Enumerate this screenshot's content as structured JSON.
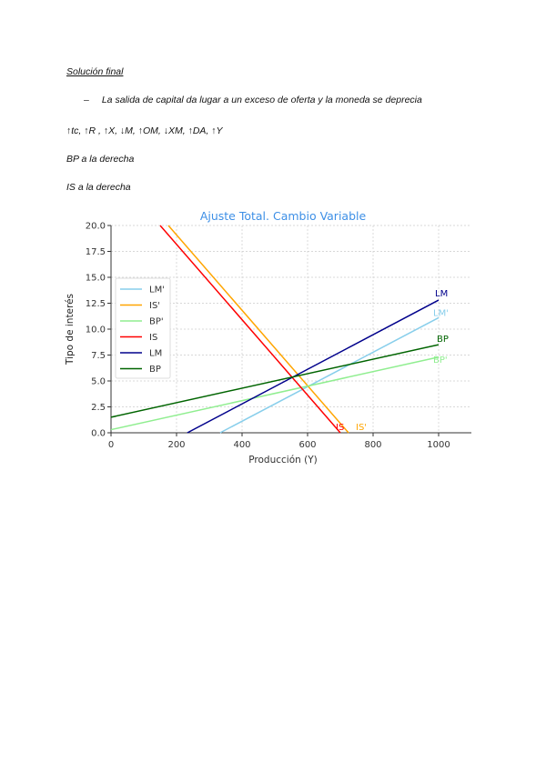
{
  "document": {
    "heading": "Solución final",
    "bullet_marker": "–",
    "bullet_text": "La salida de capital da lugar a un exceso de oferta y la moneda se deprecia",
    "line2": "↑tc, ↑R , ↑X, ↓M, ↑OM, ↓XM, ↑DA, ↑Y",
    "line3": "BP a la derecha",
    "line4": "IS a la derecha"
  },
  "chart_data": {
    "type": "line",
    "title": "Ajuste Total. Cambio Variable",
    "title_color": "#3d8fe6",
    "xlabel": "Producción (Y)",
    "ylabel": "Tipo de interés",
    "xlim": [
      0,
      1050
    ],
    "ylim": [
      0,
      20
    ],
    "xticks": [
      0,
      200,
      400,
      600,
      800,
      1000
    ],
    "yticks": [
      "0.0",
      "2.5",
      "5.0",
      "7.5",
      "10.0",
      "12.5",
      "15.0",
      "17.5",
      "20.0"
    ],
    "grid": true,
    "legend_placement": "center-left",
    "series": [
      {
        "name": "LM'",
        "color": "#87ceeb",
        "x": [
          333,
          1000
        ],
        "y": [
          0,
          11.1
        ],
        "end_label": "LM'"
      },
      {
        "name": "IS'",
        "color": "#ffa500",
        "x": [
          175,
          725
        ],
        "y": [
          20,
          0
        ],
        "end_label": "IS'"
      },
      {
        "name": "BP'",
        "color": "#90ee90",
        "x": [
          0,
          1000
        ],
        "y": [
          0.3,
          7.3
        ],
        "end_label": "BP'"
      },
      {
        "name": "IS",
        "color": "#ff0000",
        "x": [
          150,
          700
        ],
        "y": [
          20,
          0
        ],
        "end_label": "IS"
      },
      {
        "name": "LM",
        "color": "#00008b",
        "x": [
          233,
          1000
        ],
        "y": [
          0,
          12.8
        ],
        "end_label": "LM"
      },
      {
        "name": "BP",
        "color": "#006400",
        "x": [
          0,
          1000
        ],
        "y": [
          1.5,
          8.5
        ],
        "end_label": "BP"
      }
    ]
  }
}
